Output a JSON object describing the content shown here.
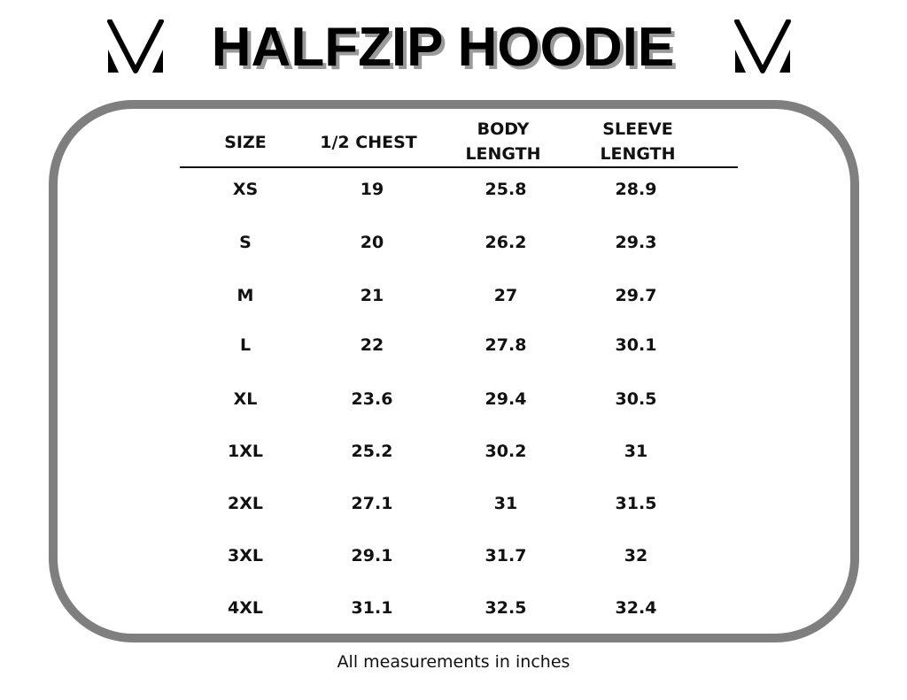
{
  "title": "HALFZIP HOODIE",
  "logo_icon": "v-monogram-logo",
  "headers": [
    "SIZE",
    "1/2 CHEST",
    "BODY LENGTH",
    "SLEEVE LENGTH"
  ],
  "header_lines": [
    [
      "SIZE"
    ],
    [
      "1/2 CHEST"
    ],
    [
      "BODY",
      "LENGTH"
    ],
    [
      "SLEEVE",
      "LENGTH"
    ]
  ],
  "rows": [
    [
      "XS",
      "19",
      "25.8",
      "28.9"
    ],
    [
      "S",
      "20",
      "26.2",
      "29.3"
    ],
    [
      "M",
      "21",
      "27",
      "29.7"
    ],
    [
      "L",
      "22",
      "27.8",
      "30.1"
    ],
    [
      "XL",
      "23.6",
      "29.4",
      "30.5"
    ],
    [
      "1XL",
      "25.2",
      "30.2",
      "31"
    ],
    [
      "2XL",
      "27.1",
      "31",
      "31.5"
    ],
    [
      "3XL",
      "29.1",
      "31.7",
      "32"
    ],
    [
      "4XL",
      "31.1",
      "32.5",
      "32.4"
    ]
  ],
  "footnote": "All measurements in inches",
  "colors": {
    "border": "#7f7f7f",
    "text": "#111111",
    "title_shadow": "#9a9a9a"
  }
}
